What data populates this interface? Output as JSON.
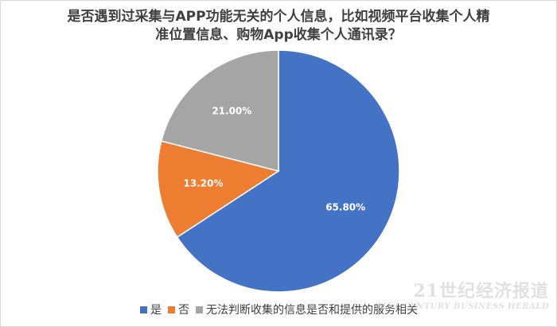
{
  "chart_data": {
    "type": "pie",
    "title": "是否遇到过采集与APP功能无关的个人信息，比如视频平台收集个人精准位置信息、购物App收集个人通讯录？",
    "title_lines": [
      "是否遇到过采集与APP功能无关的个人信息，比如视频平台收集个人精",
      "准位置信息、购物App收集个人通讯录？"
    ],
    "categories": [
      "是",
      "否",
      "无法判断收集的信息是否和提供的服务相关"
    ],
    "values": [
      65.8,
      13.2,
      21.0
    ],
    "labels": [
      "65.80%",
      "13.20%",
      "21.00%"
    ],
    "colors": [
      "#4472c4",
      "#ed7d31",
      "#a5a5a5"
    ],
    "start_angle_deg": 0,
    "direction": "clockwise",
    "legend_position": "bottom"
  },
  "watermark": {
    "main": "21世纪经济报道",
    "sub": "21ST CENTURY BUSINESS HERALD"
  }
}
